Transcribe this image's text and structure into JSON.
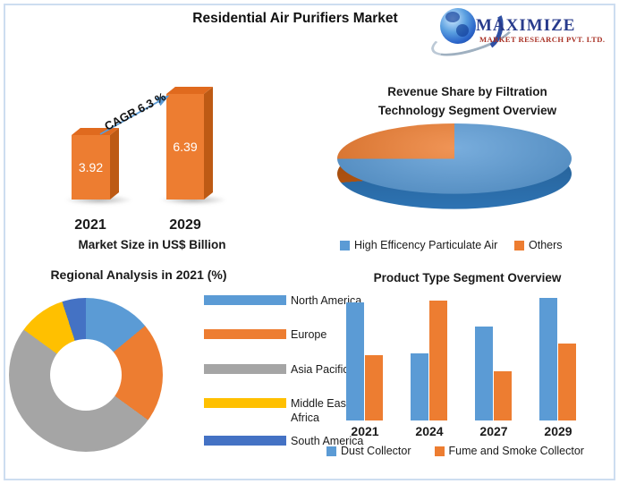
{
  "header": {
    "title": "Residential Air Purifiers Market"
  },
  "logo": {
    "brand": "MAXIMIZE",
    "subbrand": "MARKET RESEARCH PVT. LTD."
  },
  "colors": {
    "blue": "#5B9BD5",
    "orange": "#ED7D31",
    "gray": "#A5A5A5",
    "yellow": "#FFC000",
    "dark_blue": "#4472C4",
    "bar3d_front": "#ED7D31",
    "bar3d_top": "#E06A1E",
    "bar3d_side": "#BD5A14",
    "pie_side_blue": "#2E75B6",
    "pie_side_orange": "#C05A11",
    "arrow": "#5B9BD5",
    "logo_navy": "#283B8C",
    "logo_red": "#A93226"
  },
  "ui": {
    "pie_title_lines": [
      "Revenue Share by Filtration",
      "Technology Segment Overview"
    ]
  },
  "chart_data": [
    {
      "type": "bar",
      "name": "market_size",
      "title": "Market Size in US$ Billion",
      "categories": [
        "2021",
        "2029"
      ],
      "values": [
        3.92,
        6.39
      ],
      "annotation": "CAGR 6.3 %",
      "style": "3d-orange-bars",
      "ylim": [
        0,
        7
      ]
    },
    {
      "type": "pie",
      "name": "filtration_revenue_share",
      "title": "Revenue Share by Filtration Technology Segment Overview",
      "style": "3d",
      "labels": [
        "High Efficency Particulate Air",
        "Others"
      ],
      "values": [
        75,
        25
      ],
      "legend_position": "bottom"
    },
    {
      "type": "pie",
      "name": "regional_analysis_2021",
      "title": "Regional Analysis in 2021 (%)",
      "style": "donut",
      "labels": [
        "North America",
        "Europe",
        "Asia Pacific",
        "Middle East & Africa",
        "South America"
      ],
      "values": [
        14,
        21,
        50,
        10,
        5
      ],
      "legend_position": "right"
    },
    {
      "type": "bar",
      "name": "product_type_segment",
      "title": "Product Type Segment Overview",
      "categories": [
        "2021",
        "2024",
        "2027",
        "2029"
      ],
      "series": [
        {
          "name": "Dust Collector",
          "values": [
            96,
            55,
            77,
            100
          ]
        },
        {
          "name": "Fume and Smoke Collector",
          "values": [
            53,
            98,
            40,
            63
          ]
        }
      ],
      "ylim": [
        0,
        100
      ],
      "legend_position": "bottom"
    }
  ]
}
